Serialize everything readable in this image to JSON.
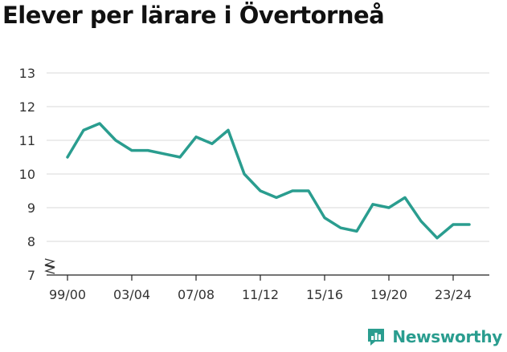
{
  "chart_data": {
    "type": "line",
    "title": "Elever per lärare i Övertorneå",
    "xlabel": "",
    "ylabel": "",
    "ylim": [
      7,
      13
    ],
    "yticks": [
      7,
      8,
      9,
      10,
      11,
      12,
      13
    ],
    "axis_break": true,
    "grid": true,
    "x": [
      "99/00",
      "00/01",
      "01/02",
      "02/03",
      "03/04",
      "04/05",
      "05/06",
      "06/07",
      "07/08",
      "08/09",
      "09/10",
      "10/11",
      "11/12",
      "12/13",
      "13/14",
      "14/15",
      "15/16",
      "16/17",
      "17/18",
      "18/19",
      "19/20",
      "20/21",
      "21/22",
      "22/23",
      "23/24",
      "24/25"
    ],
    "xtick_labels": [
      "99/00",
      "03/04",
      "07/08",
      "11/12",
      "15/16",
      "19/20",
      "23/24"
    ],
    "series": [
      {
        "values": [
          10.5,
          11.3,
          11.5,
          11.0,
          10.7,
          10.7,
          10.6,
          10.5,
          11.1,
          10.9,
          11.3,
          10.0,
          9.5,
          9.3,
          9.5,
          9.5,
          8.7,
          8.4,
          8.3,
          9.1,
          9.0,
          9.3,
          8.6,
          8.1,
          8.5,
          8.5
        ]
      }
    ],
    "colors": {
      "line": "#2a9d8f",
      "grid": "#d9d9d9",
      "axis": "#222222"
    }
  },
  "brand": {
    "name": "Newsworthy",
    "icon": "newsworthy-logo-icon",
    "color": "#2a9d8f"
  }
}
